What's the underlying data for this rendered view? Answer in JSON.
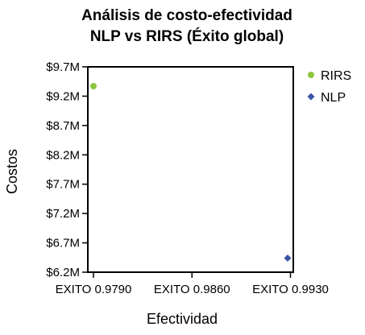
{
  "chart_data": {
    "type": "scatter",
    "title": "Análisis de costo-efectividad",
    "subtitle": "NLP vs RIRS (Éxito global)",
    "xlabel": "Efectividad",
    "ylabel": "Costos",
    "xlim": [
      0.9786,
      0.9932
    ],
    "ylim": [
      6.2,
      9.7
    ],
    "x_ticks": [
      0.979,
      0.986,
      0.993
    ],
    "x_tick_labels": [
      "EXITO 0.9790",
      "EXITO 0.9860",
      "EXITO 0.9930"
    ],
    "y_ticks": [
      6.2,
      6.7,
      7.2,
      7.7,
      8.2,
      8.7,
      9.2,
      9.7
    ],
    "y_tick_labels": [
      "$6.2M",
      "$6.7M",
      "$7.2M",
      "$7.7M",
      "$8.2M",
      "$8.7M",
      "$9.2M",
      "$9.7M"
    ],
    "grid": false,
    "legend_position": "right",
    "series": [
      {
        "name": "RIRS",
        "marker": "circle",
        "color": "#8dc63f",
        "points": [
          {
            "x": 0.979,
            "y": 9.37
          }
        ]
      },
      {
        "name": "NLP",
        "marker": "diamond",
        "color": "#3a55a4",
        "points": [
          {
            "x": 0.9928,
            "y": 6.44
          }
        ]
      }
    ]
  }
}
